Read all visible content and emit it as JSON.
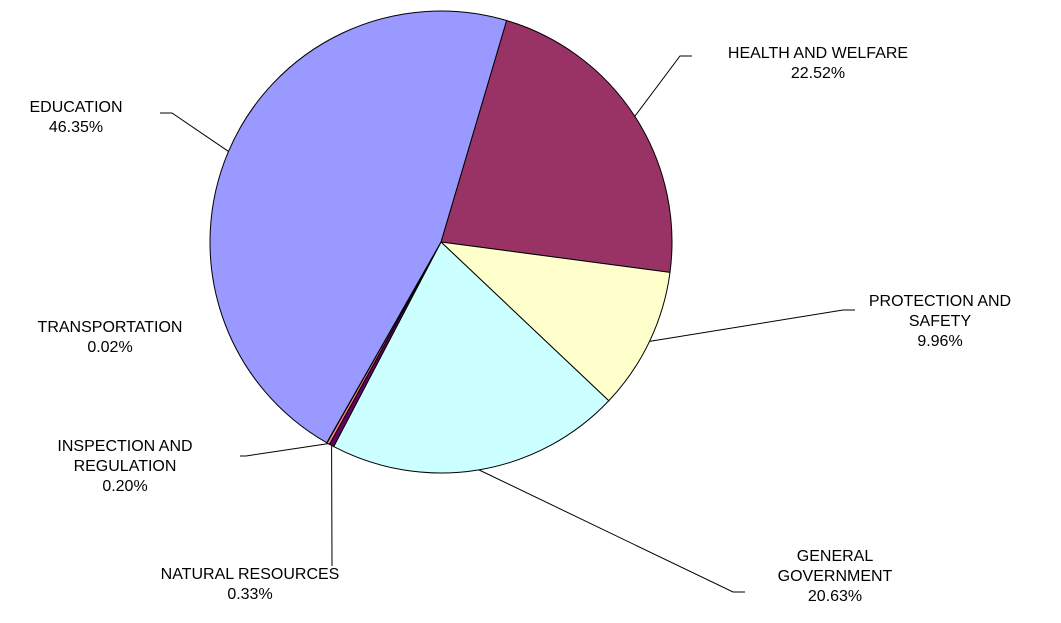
{
  "chart_data": {
    "type": "pie",
    "categories": [
      "HEALTH AND WELFARE",
      "PROTECTION AND SAFETY",
      "GENERAL GOVERNMENT",
      "NATURAL RESOURCES",
      "INSPECTION AND REGULATION",
      "TRANSPORTATION",
      "EDUCATION"
    ],
    "values": [
      22.52,
      9.96,
      20.63,
      0.33,
      0.2,
      0.02,
      46.35
    ],
    "value_labels": [
      "22.52%",
      "9.96%",
      "20.63%",
      "0.33%",
      "0.20%",
      "0.02%",
      "46.35%"
    ],
    "colors": [
      "#993366",
      "#ffffcc",
      "#ccffff",
      "#660066",
      "#ff8080",
      "#0066cc",
      "#9999ff"
    ]
  }
}
